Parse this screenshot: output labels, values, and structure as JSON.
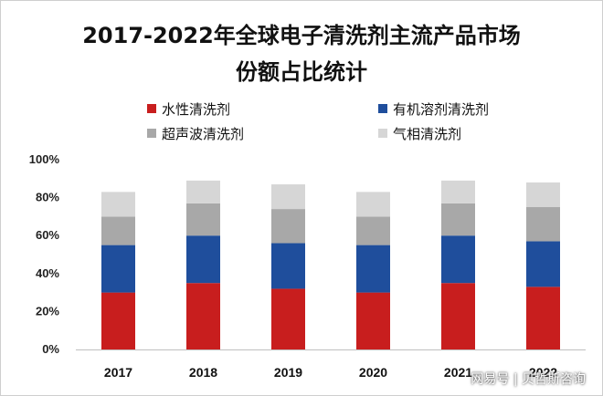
{
  "title_line1": "2017-2022年全球电子清洗剂主流产品市场",
  "title_line2": "份额占比统计",
  "watermark": "网易号 | 贝哲斯咨询",
  "colors": {
    "水性清洗剂": "#c81e1e",
    "有机溶剂清洗剂": "#1f4e9c",
    "超声波清洗剂": "#a8a8a8",
    "气相清洗剂": "#d6d6d6"
  },
  "chart_data": {
    "type": "bar",
    "stacked": true,
    "categories": [
      "2017",
      "2018",
      "2019",
      "2020",
      "2021",
      "2022"
    ],
    "series": [
      {
        "name": "水性清洗剂",
        "values": [
          30,
          35,
          32,
          30,
          35,
          33
        ]
      },
      {
        "name": "有机溶剂清洗剂",
        "values": [
          25,
          25,
          24,
          25,
          25,
          24
        ]
      },
      {
        "name": "超声波清洗剂",
        "values": [
          15,
          17,
          18,
          15,
          17,
          18
        ]
      },
      {
        "name": "气相清洗剂",
        "values": [
          13,
          12,
          13,
          13,
          12,
          13
        ]
      }
    ],
    "ylim": [
      0,
      100
    ],
    "yticks": [
      "0%",
      "20%",
      "40%",
      "60%",
      "80%",
      "100%"
    ],
    "legend_position": "top",
    "grid": false
  }
}
